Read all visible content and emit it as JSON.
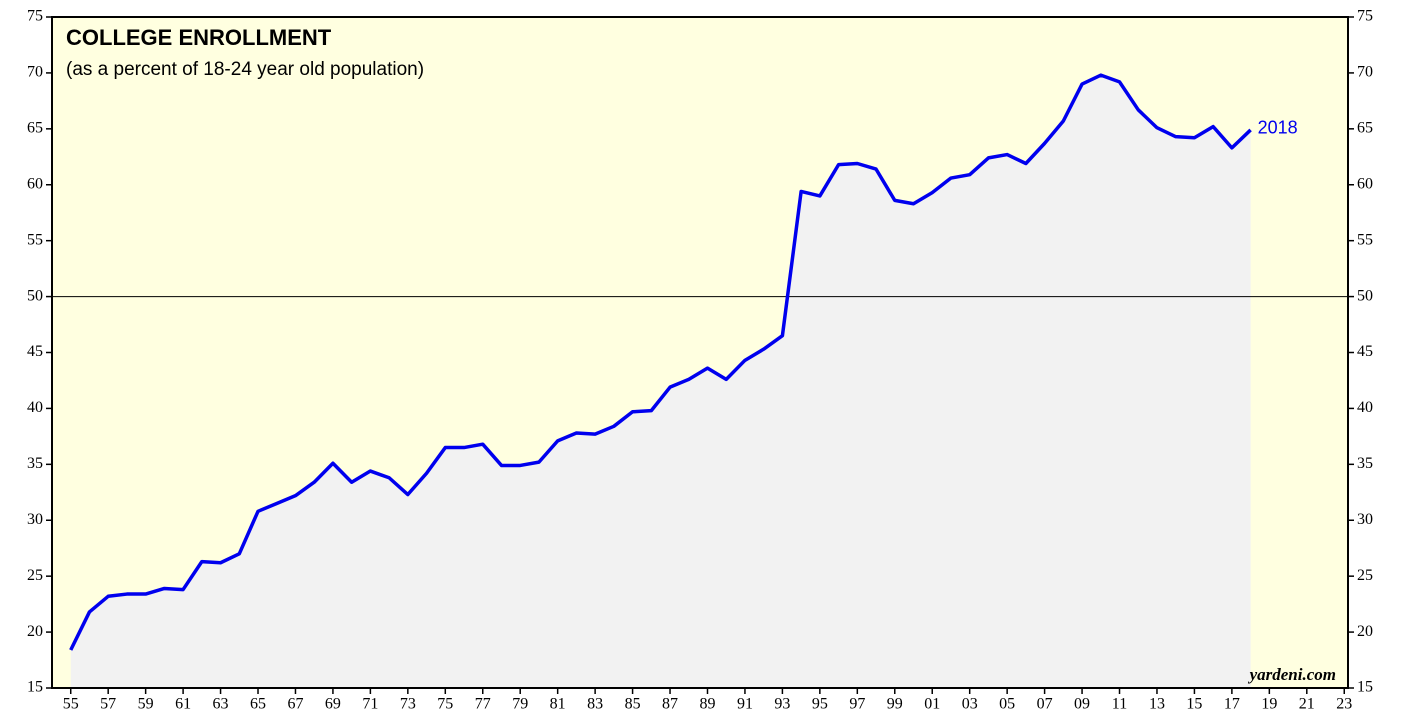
{
  "chart_data": {
    "type": "area-line",
    "title": "COLLEGE ENROLLMENT",
    "subtitle": "(as a percent of 18-24 year old population)",
    "source": "yardeni.com",
    "end_label": "2018",
    "x": [
      1955,
      1956,
      1957,
      1958,
      1959,
      1960,
      1961,
      1962,
      1963,
      1964,
      1965,
      1966,
      1967,
      1968,
      1969,
      1970,
      1971,
      1972,
      1973,
      1974,
      1975,
      1976,
      1977,
      1978,
      1979,
      1980,
      1981,
      1982,
      1983,
      1984,
      1985,
      1986,
      1987,
      1988,
      1989,
      1990,
      1991,
      1992,
      1993,
      1994,
      1995,
      1996,
      1997,
      1998,
      1999,
      2000,
      2001,
      2002,
      2003,
      2004,
      2005,
      2006,
      2007,
      2008,
      2009,
      2010,
      2011,
      2012,
      2013,
      2014,
      2015,
      2016,
      2017,
      2018
    ],
    "series": [
      {
        "color": "#0000ee",
        "fill": "#f2f2f2",
        "values": [
          18.4,
          21.8,
          23.2,
          23.4,
          23.4,
          23.9,
          23.8,
          26.3,
          26.2,
          27.0,
          30.8,
          31.5,
          32.2,
          33.4,
          35.1,
          33.4,
          34.4,
          33.8,
          32.3,
          34.2,
          36.5,
          36.5,
          36.8,
          34.9,
          34.9,
          35.2,
          37.1,
          37.8,
          37.7,
          38.4,
          39.7,
          39.8,
          41.9,
          42.6,
          43.6,
          42.6,
          44.3,
          45.3,
          46.5,
          59.4,
          59.0,
          61.8,
          61.9,
          61.4,
          58.6,
          58.3,
          59.3,
          60.6,
          60.9,
          62.4,
          62.7,
          61.9,
          63.7,
          65.7,
          69.0,
          69.8,
          69.2,
          66.7,
          65.1,
          64.3,
          64.2,
          65.2,
          63.3,
          64.9
        ]
      }
    ],
    "xlim": [
      1954,
      2023.2
    ],
    "xticks": [
      {
        "value": 1955,
        "label": "55"
      },
      {
        "value": 1957,
        "label": "57"
      },
      {
        "value": 1959,
        "label": "59"
      },
      {
        "value": 1961,
        "label": "61"
      },
      {
        "value": 1963,
        "label": "63"
      },
      {
        "value": 1965,
        "label": "65"
      },
      {
        "value": 1967,
        "label": "67"
      },
      {
        "value": 1969,
        "label": "69"
      },
      {
        "value": 1971,
        "label": "71"
      },
      {
        "value": 1973,
        "label": "73"
      },
      {
        "value": 1975,
        "label": "75"
      },
      {
        "value": 1977,
        "label": "77"
      },
      {
        "value": 1979,
        "label": "79"
      },
      {
        "value": 1981,
        "label": "81"
      },
      {
        "value": 1983,
        "label": "83"
      },
      {
        "value": 1985,
        "label": "85"
      },
      {
        "value": 1987,
        "label": "87"
      },
      {
        "value": 1989,
        "label": "89"
      },
      {
        "value": 1991,
        "label": "91"
      },
      {
        "value": 1993,
        "label": "93"
      },
      {
        "value": 1995,
        "label": "95"
      },
      {
        "value": 1997,
        "label": "97"
      },
      {
        "value": 1999,
        "label": "99"
      },
      {
        "value": 2001,
        "label": "01"
      },
      {
        "value": 2003,
        "label": "03"
      },
      {
        "value": 2005,
        "label": "05"
      },
      {
        "value": 2007,
        "label": "07"
      },
      {
        "value": 2009,
        "label": "09"
      },
      {
        "value": 2011,
        "label": "11"
      },
      {
        "value": 2013,
        "label": "13"
      },
      {
        "value": 2015,
        "label": "15"
      },
      {
        "value": 2017,
        "label": "17"
      },
      {
        "value": 2019,
        "label": "19"
      },
      {
        "value": 2021,
        "label": "21"
      },
      {
        "value": 2023,
        "label": "23"
      }
    ],
    "ylim": [
      15,
      75
    ],
    "yticks": [
      15,
      20,
      25,
      30,
      35,
      40,
      45,
      50,
      55,
      60,
      65,
      70,
      75
    ],
    "reference_line": 50,
    "background": "#ffffe0"
  }
}
